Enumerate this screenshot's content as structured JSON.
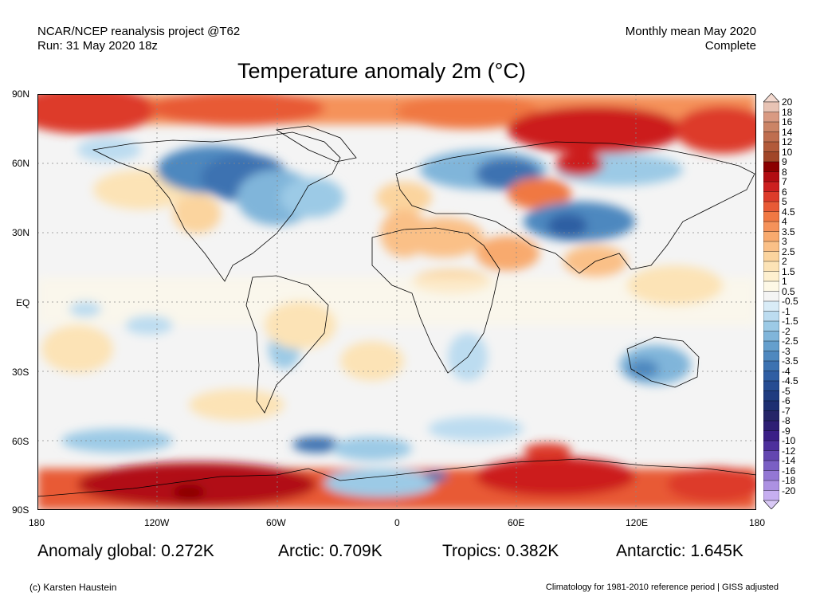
{
  "header": {
    "left_line1": "NCAR/NCEP reanalysis project @T62",
    "left_line2": "Run: 31 May 2020 18z",
    "right_line1": "Monthly mean May 2020",
    "right_line2": "Complete",
    "title": "Temperature anomaly 2m (°C)"
  },
  "lat_labels": [
    "90N",
    "60N",
    "30N",
    "EQ",
    "30S",
    "60S",
    "90S"
  ],
  "lon_labels": [
    "180",
    "120W",
    "60W",
    "0",
    "60E",
    "120E",
    "180"
  ],
  "colorbar": {
    "labels": [
      "20",
      "18",
      "16",
      "14",
      "12",
      "10",
      "9",
      "8",
      "7",
      "6",
      "5",
      "4.5",
      "4",
      "3.5",
      "3",
      "2.5",
      "2",
      "1.5",
      "1",
      "0.5",
      "-0.5",
      "-1",
      "-1.5",
      "-2",
      "-2.5",
      "-3",
      "-3.5",
      "-4",
      "-4.5",
      "-5",
      "-6",
      "-7",
      "-8",
      "-9",
      "-10",
      "-12",
      "-14",
      "-16",
      "-18",
      "-20"
    ],
    "colors": [
      "#e8c3b4",
      "#d99a82",
      "#cb8466",
      "#bf6e4f",
      "#b25a3a",
      "#a14628",
      "#8b0000",
      "#b10c12",
      "#cc1f1f",
      "#dd3b2a",
      "#e85a36",
      "#f07843",
      "#f5925a",
      "#f8aa6e",
      "#fac087",
      "#fbd49e",
      "#fce3b6",
      "#fef0cf",
      "#fdf8e6",
      "#f4f4f4",
      "#d9ecf7",
      "#bcdcf0",
      "#9ccae6",
      "#80b5da",
      "#659fcd",
      "#4e88bf",
      "#3c72b1",
      "#2f5ea3",
      "#264c92",
      "#1f3c80",
      "#1e2f72",
      "#262568",
      "#2e1f74",
      "#3b1f87",
      "#4d2f9c",
      "#6346b0",
      "#7a5fc4",
      "#9377d4",
      "#ac91e2",
      "#c6aef0"
    ],
    "top_arrow_color": "#f3d9cf",
    "bottom_arrow_color": "#d9c9f6"
  },
  "stats": {
    "global": "Anomaly global: 0.272K",
    "arctic": "Arctic: 0.709K",
    "tropics": "Tropics: 0.382K",
    "antarctic": "Antarctic: 1.645K"
  },
  "footer": {
    "credit": "(c) Karsten Haustein",
    "note": "Climatology for 1981-2010 reference period | GISS adjusted"
  }
}
